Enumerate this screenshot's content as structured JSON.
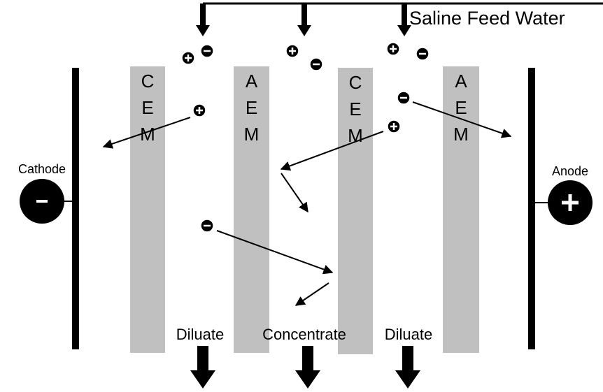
{
  "title": "Saline Feed Water",
  "membranes": [
    {
      "letters": [
        "C",
        "E",
        "M"
      ]
    },
    {
      "letters": [
        "A",
        "E",
        "M"
      ]
    },
    {
      "letters": [
        "C",
        "E",
        "M"
      ]
    },
    {
      "letters": [
        "A",
        "E",
        "M"
      ]
    }
  ],
  "electrodes": {
    "cathode": "Cathode",
    "anode": "Anode"
  },
  "outlets": [
    "Diluate",
    "Concentrate",
    "Diluate"
  ]
}
